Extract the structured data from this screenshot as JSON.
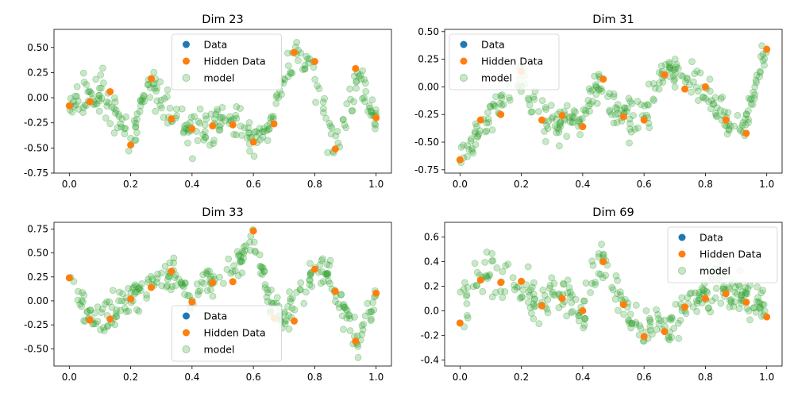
{
  "figure": {
    "layout": "2x2 grid",
    "background": "#ffffff"
  },
  "legend_labels": {
    "data": "Data",
    "hidden": "Hidden Data",
    "model": "model"
  },
  "colors": {
    "data": "#1f77b4",
    "hidden": "#ff7f0e",
    "model": "#2ca02c"
  },
  "chart_data": [
    {
      "type": "scatter",
      "title": "Dim 23",
      "xlim": [
        -0.05,
        1.05
      ],
      "ylim": [
        -0.75,
        0.68
      ],
      "xticks": [
        0.0,
        0.2,
        0.4,
        0.6,
        0.8,
        1.0
      ],
      "yticks": [
        -0.75,
        -0.5,
        -0.25,
        0.0,
        0.25,
        0.5
      ],
      "legend_position": "top-center",
      "hidden_data": {
        "x": [
          0.0,
          0.067,
          0.133,
          0.2,
          0.267,
          0.333,
          0.4,
          0.467,
          0.533,
          0.6,
          0.667,
          0.733,
          0.8,
          0.867,
          0.933,
          1.0
        ],
        "y": [
          -0.08,
          -0.04,
          0.06,
          -0.47,
          0.19,
          -0.21,
          -0.31,
          -0.28,
          -0.27,
          -0.44,
          -0.26,
          0.45,
          0.36,
          -0.51,
          0.29,
          -0.2
        ]
      },
      "model": {
        "x": [
          0.0,
          0.05,
          0.1,
          0.15,
          0.2,
          0.25,
          0.28,
          0.33,
          0.4,
          0.45,
          0.5,
          0.55,
          0.6,
          0.65,
          0.7,
          0.73,
          0.78,
          0.82,
          0.86,
          0.88,
          0.92,
          0.95,
          1.0
        ],
        "y": [
          -0.1,
          0.05,
          0.05,
          -0.15,
          -0.45,
          0.1,
          0.1,
          -0.15,
          -0.32,
          -0.3,
          -0.25,
          -0.22,
          -0.42,
          -0.3,
          0.2,
          0.45,
          0.35,
          0.0,
          -0.45,
          -0.4,
          0.0,
          0.2,
          -0.2
        ]
      }
    },
    {
      "type": "scatter",
      "title": "Dim 31",
      "xlim": [
        -0.05,
        1.05
      ],
      "ylim": [
        -0.78,
        0.52
      ],
      "xticks": [
        0.0,
        0.2,
        0.4,
        0.6,
        0.8,
        1.0
      ],
      "yticks": [
        -0.75,
        -0.5,
        -0.25,
        0.0,
        0.25,
        0.5
      ],
      "legend_position": "top-left",
      "hidden_data": {
        "x": [
          0.0,
          0.067,
          0.133,
          0.2,
          0.267,
          0.333,
          0.4,
          0.467,
          0.533,
          0.6,
          0.667,
          0.733,
          0.8,
          0.867,
          0.933,
          1.0
        ],
        "y": [
          -0.66,
          -0.3,
          -0.25,
          0.14,
          -0.3,
          -0.26,
          -0.36,
          0.07,
          -0.27,
          -0.3,
          0.11,
          -0.02,
          0.0,
          -0.3,
          -0.42,
          0.34
        ]
      },
      "model": {
        "x": [
          0.0,
          0.05,
          0.1,
          0.15,
          0.2,
          0.25,
          0.3,
          0.35,
          0.4,
          0.45,
          0.5,
          0.55,
          0.6,
          0.65,
          0.68,
          0.72,
          0.78,
          0.82,
          0.86,
          0.9,
          0.94,
          1.0
        ],
        "y": [
          -0.65,
          -0.45,
          -0.25,
          -0.05,
          0.05,
          -0.25,
          -0.3,
          -0.3,
          -0.3,
          0.05,
          -0.2,
          -0.25,
          -0.3,
          0.05,
          0.15,
          0.1,
          0.0,
          -0.1,
          -0.3,
          -0.35,
          -0.25,
          0.35
        ]
      }
    },
    {
      "type": "scatter",
      "title": "Dim 33",
      "xlim": [
        -0.05,
        1.05
      ],
      "ylim": [
        -0.68,
        0.82
      ],
      "xticks": [
        0.0,
        0.2,
        0.4,
        0.6,
        0.8,
        1.0
      ],
      "yticks": [
        -0.5,
        -0.25,
        0.0,
        0.25,
        0.5,
        0.75
      ],
      "legend_position": "bottom-center",
      "hidden_data": {
        "x": [
          0.0,
          0.067,
          0.133,
          0.2,
          0.267,
          0.333,
          0.4,
          0.467,
          0.533,
          0.6,
          0.667,
          0.733,
          0.8,
          0.867,
          0.933,
          1.0
        ],
        "y": [
          0.24,
          -0.2,
          -0.19,
          0.02,
          0.14,
          0.31,
          -0.01,
          0.19,
          0.2,
          0.73,
          -0.18,
          -0.21,
          0.33,
          0.1,
          -0.42,
          0.08
        ]
      },
      "model": {
        "x": [
          0.0,
          0.04,
          0.08,
          0.12,
          0.16,
          0.2,
          0.25,
          0.3,
          0.35,
          0.4,
          0.45,
          0.5,
          0.55,
          0.6,
          0.65,
          0.7,
          0.75,
          0.8,
          0.85,
          0.9,
          0.94,
          0.97,
          1.0
        ],
        "y": [
          0.2,
          0.0,
          -0.2,
          -0.15,
          -0.05,
          0.05,
          0.15,
          0.25,
          0.25,
          0.0,
          0.2,
          0.3,
          0.4,
          0.7,
          0.0,
          -0.2,
          0.0,
          0.35,
          0.25,
          -0.1,
          -0.45,
          -0.2,
          0.05
        ]
      }
    },
    {
      "type": "scatter",
      "title": "Dim 69",
      "xlim": [
        -0.05,
        1.05
      ],
      "ylim": [
        -0.45,
        0.72
      ],
      "xticks": [
        0.0,
        0.2,
        0.4,
        0.6,
        0.8,
        1.0
      ],
      "yticks": [
        -0.4,
        -0.2,
        0.0,
        0.2,
        0.4,
        0.6
      ],
      "legend_position": "top-right",
      "hidden_data": {
        "x": [
          0.0,
          0.067,
          0.133,
          0.2,
          0.267,
          0.333,
          0.4,
          0.467,
          0.533,
          0.6,
          0.667,
          0.733,
          0.8,
          0.867,
          0.933,
          1.0
        ],
        "y": [
          -0.1,
          0.25,
          0.23,
          0.24,
          0.04,
          0.1,
          0.0,
          0.4,
          0.05,
          -0.21,
          -0.17,
          0.03,
          0.1,
          0.14,
          0.07,
          -0.05
        ]
      },
      "model": {
        "x": [
          0.0,
          0.05,
          0.1,
          0.15,
          0.2,
          0.25,
          0.3,
          0.35,
          0.4,
          0.44,
          0.47,
          0.5,
          0.55,
          0.6,
          0.65,
          0.7,
          0.75,
          0.8,
          0.85,
          0.9,
          0.95,
          1.0
        ],
        "y": [
          0.0,
          0.25,
          0.3,
          0.25,
          0.2,
          0.05,
          0.15,
          0.1,
          0.0,
          0.3,
          0.45,
          0.2,
          -0.05,
          -0.2,
          -0.15,
          -0.1,
          0.05,
          0.15,
          0.2,
          0.15,
          0.05,
          0.0
        ]
      }
    }
  ]
}
